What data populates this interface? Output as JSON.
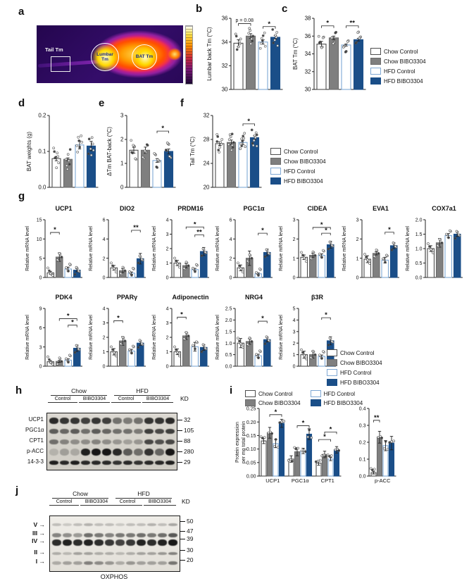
{
  "panels": {
    "a": "a",
    "b": "b",
    "c": "c",
    "d": "d",
    "e": "e",
    "f": "f",
    "g": "g",
    "h": "h",
    "i": "i",
    "j": "j"
  },
  "legend": {
    "labels": [
      "Chow Control",
      "Chow BIBO3304",
      "HFD Control",
      "HFD BIBO3304"
    ]
  },
  "palette": [
    {
      "fill": "#ffffff",
      "stroke": "#4d4d4d"
    },
    {
      "fill": "#7f7f7f",
      "stroke": "#6b6b6b"
    },
    {
      "fill": "#ffffff",
      "stroke": "#7fa8d4"
    },
    {
      "fill": "#1a4e88",
      "stroke": "#1a4e88"
    }
  ],
  "panel_a": {
    "tail_label": "Tail Tm",
    "lumbar_label": "Lumbar Tm",
    "bat_label": "BAT Tm"
  },
  "chart_data": [
    {
      "id": "b",
      "type": "bar",
      "title": "",
      "ylabel": "Lumbar back Tm (°C)",
      "ylim": [
        30,
        36
      ],
      "yticks": [
        "30",
        "32",
        "34",
        "36"
      ],
      "values": [
        33.9,
        34.5,
        34.0,
        34.4
      ],
      "errors": [
        0.3,
        0.2,
        0.18,
        0.15
      ],
      "sig": [
        {
          "from": 0,
          "to": 1,
          "label": "p = 0.08",
          "y": 35.55
        },
        {
          "from": 2,
          "to": 3,
          "label": "*",
          "y": 35.3
        }
      ],
      "layout": {
        "w": 120,
        "h": 124,
        "ml": 36,
        "mt": 14,
        "mb": 9,
        "bw": 13,
        "g": 4.5,
        "pad": 4,
        "nd": 7,
        "yf": 8,
        "tkf": 8,
        "ds": 26
      }
    },
    {
      "id": "c",
      "type": "bar",
      "title": "",
      "ylabel": "BAT Tm (°C)",
      "ylim": [
        30,
        38
      ],
      "yticks": [
        "30",
        "32",
        "34",
        "36",
        "38"
      ],
      "values": [
        35.1,
        35.8,
        35.0,
        35.6
      ],
      "errors": [
        0.3,
        0.2,
        0.12,
        0.15
      ],
      "sig": [
        {
          "from": 0,
          "to": 1,
          "label": "*",
          "y": 37.15
        },
        {
          "from": 2,
          "to": 3,
          "label": "**",
          "y": 37.15
        }
      ],
      "layout": {
        "w": 118,
        "h": 124,
        "ml": 32,
        "mt": 14,
        "mb": 9,
        "bw": 13,
        "g": 4.5,
        "pad": 4,
        "nd": 7,
        "yf": 8,
        "tkf": 8,
        "ds": 22
      }
    },
    {
      "id": "d",
      "type": "bar",
      "title": "",
      "ylabel": "BAT weights (g)",
      "ylim": [
        0,
        0.2
      ],
      "yticks": [
        "0.0",
        "0.1",
        "0.2"
      ],
      "values": [
        0.08,
        0.078,
        0.118,
        0.115
      ],
      "errors": [
        0.006,
        0.004,
        0.011,
        0.013
      ],
      "sig": [],
      "layout": {
        "w": 108,
        "h": 128,
        "ml": 34,
        "mt": 16,
        "mb": 10,
        "bw": 12,
        "g": 4.5,
        "pad": 4,
        "nd": 7,
        "yf": 8,
        "tkf": 8,
        "ds": 30
      }
    },
    {
      "id": "e",
      "type": "bar",
      "title": "",
      "ylabel": "ΔTm BAT-back (°C)",
      "ylim": [
        0,
        3
      ],
      "yticks": [
        "0",
        "1",
        "2",
        "3"
      ],
      "values": [
        1.55,
        1.55,
        1.12,
        1.5
      ],
      "errors": [
        0.12,
        0.13,
        0.08,
        0.1
      ],
      "sig": [
        {
          "from": 2,
          "to": 3,
          "label": "*",
          "y": 2.35
        }
      ],
      "layout": {
        "w": 104,
        "h": 128,
        "ml": 30,
        "mt": 16,
        "mb": 10,
        "bw": 12,
        "g": 4.5,
        "pad": 4,
        "nd": 8,
        "yf": 8,
        "tkf": 8,
        "ds": 28
      }
    },
    {
      "id": "f",
      "type": "bar",
      "title": "",
      "ylabel": "Tail Tm (°C)",
      "ylim": [
        20,
        32
      ],
      "yticks": [
        "20",
        "24",
        "28",
        "32"
      ],
      "values": [
        27.3,
        27.5,
        27.5,
        28.3
      ],
      "errors": [
        0.3,
        0.4,
        0.35,
        0.3
      ],
      "sig": [
        {
          "from": 2,
          "to": 3,
          "label": "*",
          "y": 30.6
        }
      ],
      "layout": {
        "w": 104,
        "h": 128,
        "ml": 34,
        "mt": 16,
        "mb": 10,
        "bw": 12,
        "g": 4.5,
        "pad": 4,
        "nd": 9,
        "yf": 8,
        "tkf": 8,
        "ds": 26
      }
    },
    {
      "id": "g_ucp1",
      "type": "bar",
      "title": "UCP1",
      "ylabel": "Relative mRNA level",
      "ylim": [
        0,
        15
      ],
      "yticks": [
        "0",
        "5",
        "10",
        "15"
      ],
      "values": [
        1.2,
        5.3,
        2.2,
        1.9
      ],
      "errors": [
        0.4,
        1.1,
        0.5,
        0.4
      ],
      "sig": [
        {
          "from": 0,
          "to": 1,
          "label": "*",
          "y": 11.7
        }
      ],
      "layout": {
        "w": 92,
        "h": 112,
        "ml": 30,
        "mt": 24,
        "mb": 6,
        "bw": 9.5,
        "g": 3,
        "pad": 3,
        "ty": 11,
        "tf": 9,
        "yf": 7,
        "tkf": 7,
        "yx": 7,
        "nd": 5
      }
    },
    {
      "id": "g_dio2",
      "type": "bar",
      "title": "DIO2",
      "ylabel": "Relative mRNA level",
      "ylim": [
        0,
        6
      ],
      "yticks": [
        "0",
        "2",
        "4",
        "6"
      ],
      "values": [
        1.0,
        0.7,
        0.45,
        1.95
      ],
      "errors": [
        0.25,
        0.2,
        0.12,
        0.55
      ],
      "sig": [
        {
          "from": 2,
          "to": 3,
          "label": "**",
          "y": 4.9
        }
      ],
      "layout": {
        "w": 92,
        "h": 112,
        "ml": 30,
        "mt": 24,
        "mb": 6,
        "bw": 9.5,
        "g": 3,
        "pad": 3,
        "ty": 11,
        "tf": 9,
        "yf": 7,
        "tkf": 7,
        "yx": 7,
        "nd": 5
      }
    },
    {
      "id": "g_prdm16",
      "type": "bar",
      "title": "PRDM16",
      "ylabel": "Relative mRNA level",
      "ylim": [
        0,
        4
      ],
      "yticks": [
        "0",
        "1",
        "2",
        "3",
        "4"
      ],
      "values": [
        1.0,
        0.82,
        0.55,
        1.8
      ],
      "errors": [
        0.18,
        0.15,
        0.08,
        0.28
      ],
      "sig": [
        {
          "from": 1,
          "to": 3,
          "label": "*",
          "y": 3.5
        },
        {
          "from": 2,
          "to": 3,
          "label": "**",
          "y": 2.95
        }
      ],
      "layout": {
        "w": 92,
        "h": 112,
        "ml": 30,
        "mt": 24,
        "mb": 6,
        "bw": 9.5,
        "g": 3,
        "pad": 3,
        "ty": 11,
        "tf": 9,
        "yf": 7,
        "tkf": 7,
        "yx": 7,
        "nd": 5
      }
    },
    {
      "id": "g_pgc1a",
      "type": "bar",
      "title": "PGC1α",
      "ylabel": "Relative mRNA level",
      "ylim": [
        0,
        6
      ],
      "yticks": [
        "0",
        "2",
        "4",
        "6"
      ],
      "values": [
        1.0,
        2.0,
        0.38,
        2.6
      ],
      "errors": [
        0.3,
        0.75,
        0.08,
        0.35
      ],
      "sig": [
        {
          "from": 2,
          "to": 3,
          "label": "*",
          "y": 4.6
        }
      ],
      "layout": {
        "w": 92,
        "h": 112,
        "ml": 30,
        "mt": 24,
        "mb": 6,
        "bw": 9.5,
        "g": 3,
        "pad": 3,
        "ty": 11,
        "tf": 9,
        "yf": 7,
        "tkf": 7,
        "yx": 7,
        "nd": 5
      }
    },
    {
      "id": "g_cidea",
      "type": "bar",
      "title": "CIDEA",
      "ylabel": "Relative mRNA level",
      "ylim": [
        0,
        3
      ],
      "yticks": [
        "0",
        "1",
        "2",
        "3"
      ],
      "values": [
        1.05,
        1.15,
        1.15,
        1.7
      ],
      "errors": [
        0.12,
        0.1,
        0.08,
        0.18
      ],
      "sig": [
        {
          "from": 1,
          "to": 3,
          "label": "*",
          "y": 2.6
        },
        {
          "from": 2,
          "to": 3,
          "label": "*",
          "y": 2.3
        }
      ],
      "layout": {
        "w": 92,
        "h": 112,
        "ml": 30,
        "mt": 24,
        "mb": 6,
        "bw": 9.5,
        "g": 3,
        "pad": 3,
        "ty": 11,
        "tf": 9,
        "yf": 7,
        "tkf": 7,
        "yx": 7,
        "nd": 5
      }
    },
    {
      "id": "g_eva1",
      "type": "bar",
      "title": "EVA1",
      "ylabel": "Relative mRNA level",
      "ylim": [
        0,
        3
      ],
      "yticks": [
        "0",
        "1",
        "2",
        "3"
      ],
      "values": [
        0.95,
        1.25,
        0.9,
        1.65
      ],
      "errors": [
        0.18,
        0.08,
        0.15,
        0.15
      ],
      "sig": [
        {
          "from": 2,
          "to": 3,
          "label": "*",
          "y": 2.35
        }
      ],
      "layout": {
        "w": 92,
        "h": 112,
        "ml": 30,
        "mt": 24,
        "mb": 6,
        "bw": 9.5,
        "g": 3,
        "pad": 3,
        "ty": 11,
        "tf": 9,
        "yf": 7,
        "tkf": 7,
        "yx": 7,
        "nd": 5
      }
    },
    {
      "id": "g_cox7a1",
      "type": "bar",
      "title": "COX7a1",
      "ylabel": "Relative mRNA level",
      "ylim": [
        0,
        2
      ],
      "yticks": [
        "0.0",
        "0.5",
        "1.0",
        "1.5",
        "2.0"
      ],
      "values": [
        1.0,
        1.2,
        1.45,
        1.5
      ],
      "errors": [
        0.1,
        0.15,
        0.07,
        0.08
      ],
      "sig": [],
      "layout": {
        "w": 92,
        "h": 112,
        "ml": 30,
        "mt": 24,
        "mb": 6,
        "bw": 9.5,
        "g": 3,
        "pad": 3,
        "ty": 11,
        "tf": 9,
        "yf": 7,
        "tkf": 7,
        "yx": 7,
        "nd": 5
      }
    },
    {
      "id": "g_pdk4",
      "type": "bar",
      "title": "PDK4",
      "ylabel": "Relative mRNA level",
      "ylim": [
        0,
        9
      ],
      "yticks": [
        "0",
        "3",
        "6",
        "9"
      ],
      "values": [
        0.7,
        0.75,
        0.95,
        2.8
      ],
      "errors": [
        0.18,
        0.15,
        0.2,
        0.5
      ],
      "sig": [
        {
          "from": 1,
          "to": 3,
          "label": "*",
          "y": 7.4
        },
        {
          "from": 2,
          "to": 3,
          "label": "*",
          "y": 6.4
        }
      ],
      "layout": {
        "w": 92,
        "h": 112,
        "ml": 30,
        "mt": 24,
        "mb": 6,
        "bw": 9.5,
        "g": 3,
        "pad": 3,
        "ty": 11,
        "tf": 9,
        "yf": 7,
        "tkf": 7,
        "yx": 7,
        "nd": 5
      }
    },
    {
      "id": "g_pparg",
      "type": "bar",
      "title": "PPARγ",
      "ylabel": "Relative mRNA level",
      "ylim": [
        0,
        4
      ],
      "yticks": [
        "0",
        "1",
        "2",
        "3",
        "4"
      ],
      "values": [
        1.0,
        1.75,
        1.05,
        1.6
      ],
      "errors": [
        0.22,
        0.3,
        0.12,
        0.15
      ],
      "sig": [
        {
          "from": 0,
          "to": 1,
          "label": "*",
          "y": 3.15
        }
      ],
      "layout": {
        "w": 92,
        "h": 112,
        "ml": 30,
        "mt": 24,
        "mb": 6,
        "bw": 9.5,
        "g": 3,
        "pad": 3,
        "ty": 11,
        "tf": 9,
        "yf": 7,
        "tkf": 7,
        "yx": 7,
        "nd": 5
      }
    },
    {
      "id": "g_adipo",
      "type": "bar",
      "title": "Adiponectin",
      "ylabel": "Relative mRNA level",
      "ylim": [
        0,
        4
      ],
      "yticks": [
        "0",
        "1",
        "2",
        "3",
        "4"
      ],
      "values": [
        1.0,
        2.1,
        1.35,
        1.3
      ],
      "errors": [
        0.2,
        0.25,
        0.3,
        0.2
      ],
      "sig": [
        {
          "from": 0,
          "to": 1,
          "label": "*",
          "y": 3.4
        }
      ],
      "layout": {
        "w": 92,
        "h": 112,
        "ml": 30,
        "mt": 24,
        "mb": 6,
        "bw": 9.5,
        "g": 3,
        "pad": 3,
        "ty": 11,
        "tf": 9,
        "yf": 7,
        "tkf": 7,
        "yx": 7,
        "nd": 5
      }
    },
    {
      "id": "g_nrg4",
      "type": "bar",
      "title": "NRG4",
      "ylabel": "Relative mRNA level",
      "ylim": [
        0,
        2.5
      ],
      "yticks": [
        "0.0",
        "0.5",
        "1.0",
        "1.5",
        "2.0",
        "2.5"
      ],
      "values": [
        1.0,
        1.07,
        0.45,
        1.15
      ],
      "errors": [
        0.2,
        0.12,
        0.07,
        0.1
      ],
      "sig": [
        {
          "from": 2,
          "to": 3,
          "label": "*",
          "y": 1.95
        }
      ],
      "layout": {
        "w": 92,
        "h": 112,
        "ml": 30,
        "mt": 24,
        "mb": 6,
        "bw": 9.5,
        "g": 3,
        "pad": 3,
        "ty": 11,
        "tf": 9,
        "yf": 7,
        "tkf": 7,
        "yx": 7,
        "nd": 5
      }
    },
    {
      "id": "g_b3r",
      "type": "bar",
      "title": "β3R",
      "ylabel": "Relative mRNA level",
      "ylim": [
        0,
        5
      ],
      "yticks": [
        "0",
        "1",
        "2",
        "3",
        "4",
        "5"
      ],
      "values": [
        1.0,
        1.0,
        0.85,
        2.2
      ],
      "errors": [
        0.3,
        0.3,
        0.12,
        0.35
      ],
      "sig": [
        {
          "from": 2,
          "to": 3,
          "label": "*",
          "y": 4.2
        }
      ],
      "layout": {
        "w": 92,
        "h": 112,
        "ml": 30,
        "mt": 24,
        "mb": 6,
        "bw": 9.5,
        "g": 3,
        "pad": 3,
        "ty": 11,
        "tf": 9,
        "yf": 7,
        "tkf": 7,
        "yx": 7,
        "nd": 5
      }
    },
    {
      "id": "i_left",
      "type": "grouped_bar",
      "title": "",
      "ylabel": "Protein expression\nper mg total protein",
      "categories": [
        "UCP1",
        "PGC1α",
        "CPT1"
      ],
      "ylim": [
        0,
        0.25
      ],
      "yticks": [
        "0.00",
        "0.05",
        "0.10",
        "0.15",
        "0.20",
        "0.25"
      ],
      "series": [
        {
          "name": "Chow Control",
          "values": [
            0.13,
            0.063,
            0.048
          ],
          "errors": [
            0.01,
            0.012,
            0.008
          ]
        },
        {
          "name": "Chow BIBO3304",
          "values": [
            0.16,
            0.09,
            0.08
          ],
          "errors": [
            0.02,
            0.015,
            0.012
          ]
        },
        {
          "name": "HFD Control",
          "values": [
            0.12,
            0.093,
            0.063
          ],
          "errors": [
            0.015,
            0.01,
            0.006
          ]
        },
        {
          "name": "HFD BIBO3304",
          "values": [
            0.195,
            0.155,
            0.097
          ],
          "errors": [
            0.015,
            0.02,
            0.012
          ]
        }
      ],
      "sig": [
        {
          "cat": 0,
          "from": 1,
          "to": 3,
          "label": "*",
          "y": 0.227
        },
        {
          "cat": 1,
          "from": 1,
          "to": 3,
          "label": "*",
          "y": 0.186
        },
        {
          "cat": 2,
          "from": 0,
          "to": 2,
          "label": "*",
          "y": 0.135
        },
        {
          "cat": 2,
          "from": 1,
          "to": 3,
          "label": "*",
          "y": 0.163
        }
      ],
      "layout": {
        "w": 158,
        "h": 120,
        "ml": 36,
        "mt": 10,
        "mb": 14,
        "bw": 7,
        "g": 1.5,
        "cg": 6.5,
        "pad": 3,
        "nd": 3,
        "yf": 7,
        "tkf": 7,
        "yx": 7,
        "ds": 12
      }
    },
    {
      "id": "i_pacc",
      "type": "grouped_bar",
      "title": "",
      "ylabel": "",
      "categories": [
        "p-ACC"
      ],
      "ylim": [
        0,
        0.4
      ],
      "yticks": [
        "0.0",
        "0.1",
        "0.2",
        "0.3",
        "0.4"
      ],
      "values": [
        0.02,
        0.23,
        0.18,
        0.195
      ],
      "errors": [
        0.008,
        0.035,
        0.03,
        0.04
      ],
      "sig": [
        {
          "from": 0,
          "to": 1,
          "label": "**",
          "y": 0.33
        }
      ],
      "layout": {
        "w": 72,
        "h": 120,
        "ml": 26,
        "mt": 10,
        "mb": 14,
        "bw": 7,
        "g": 1.5,
        "pad": 3,
        "nd": 3,
        "yf": 7,
        "tkf": 7,
        "ds": 12
      }
    }
  ],
  "blot_h": {
    "groups": [
      "Chow",
      "HFD"
    ],
    "lanes": [
      "Control",
      "BIBO3304",
      "Control",
      "BIBO3304"
    ],
    "kd_label": "KD",
    "rows": [
      {
        "label": "UCP1",
        "kd": "32"
      },
      {
        "label": "PGC1α",
        "kd": "105"
      },
      {
        "label": "CPT1",
        "kd": "88"
      },
      {
        "label": "p-ACC",
        "kd": "280"
      },
      {
        "label": "14-3-3",
        "kd": "29"
      }
    ]
  },
  "blot_j": {
    "groups": [
      "Chow",
      "HFD"
    ],
    "lanes": [
      "Control",
      "BIBO3304",
      "Control",
      "BIBO3304"
    ],
    "kd_label": "KD",
    "markers": [
      "50",
      "47",
      "39",
      "30",
      "20"
    ],
    "complexes": [
      "V",
      "III",
      "IV",
      "II",
      "I"
    ],
    "caption": "OXPHOS"
  }
}
